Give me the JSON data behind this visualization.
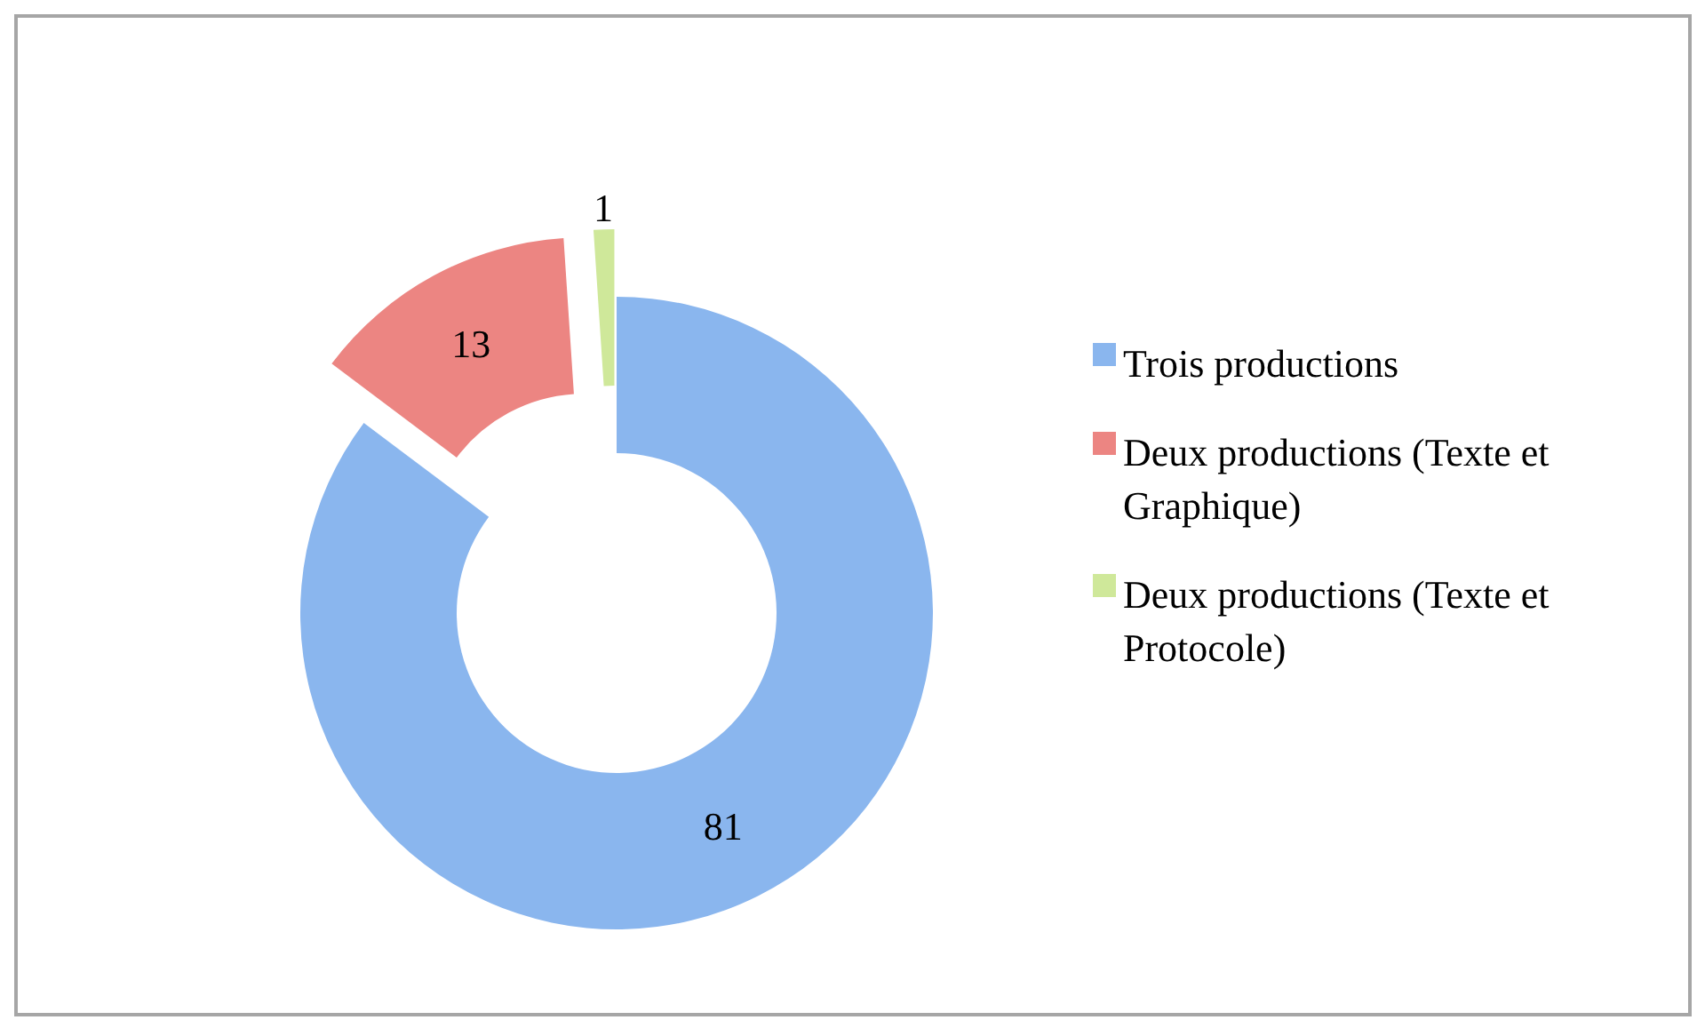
{
  "chart_data": {
    "type": "donut",
    "categories": [
      "Trois productions",
      "Deux productions (Texte et Graphique)",
      "Deux productions (Texte et Protocole)"
    ],
    "values": [
      81,
      13,
      1
    ],
    "colors": [
      "#8ab6ee",
      "#ec8582",
      "#cfe89a"
    ],
    "data_labels": true,
    "legend": "right"
  }
}
